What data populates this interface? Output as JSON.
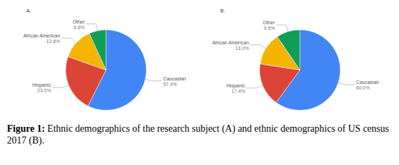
{
  "chart_data": [
    {
      "type": "pie",
      "title": "A.",
      "categories": [
        "Caucasian",
        "Hispanic",
        "African American",
        "Other"
      ],
      "values": [
        57.4,
        23.0,
        12.8,
        6.8
      ],
      "value_labels": [
        "57.4%",
        "23.0%",
        "12.8%",
        "6.8%"
      ],
      "colors": [
        "#4285f4",
        "#db4437",
        "#f4b400",
        "#0f9d58"
      ],
      "data_labels": true
    },
    {
      "type": "pie",
      "title": "B.",
      "categories": [
        "Caucasian",
        "Hispanic",
        "African American",
        "Other"
      ],
      "values": [
        60.0,
        17.4,
        13.0,
        9.5
      ],
      "value_labels": [
        "60.0%",
        "17.4%",
        "13.0%",
        "9.5%"
      ],
      "colors": [
        "#4285f4",
        "#db4437",
        "#f4b400",
        "#0f9d58"
      ],
      "data_labels": true
    }
  ],
  "caption_label": "Figure 1:",
  "caption_text": "Ethnic demographics of the research subject (A) and ethnic demographics of US census 2017 (B)."
}
